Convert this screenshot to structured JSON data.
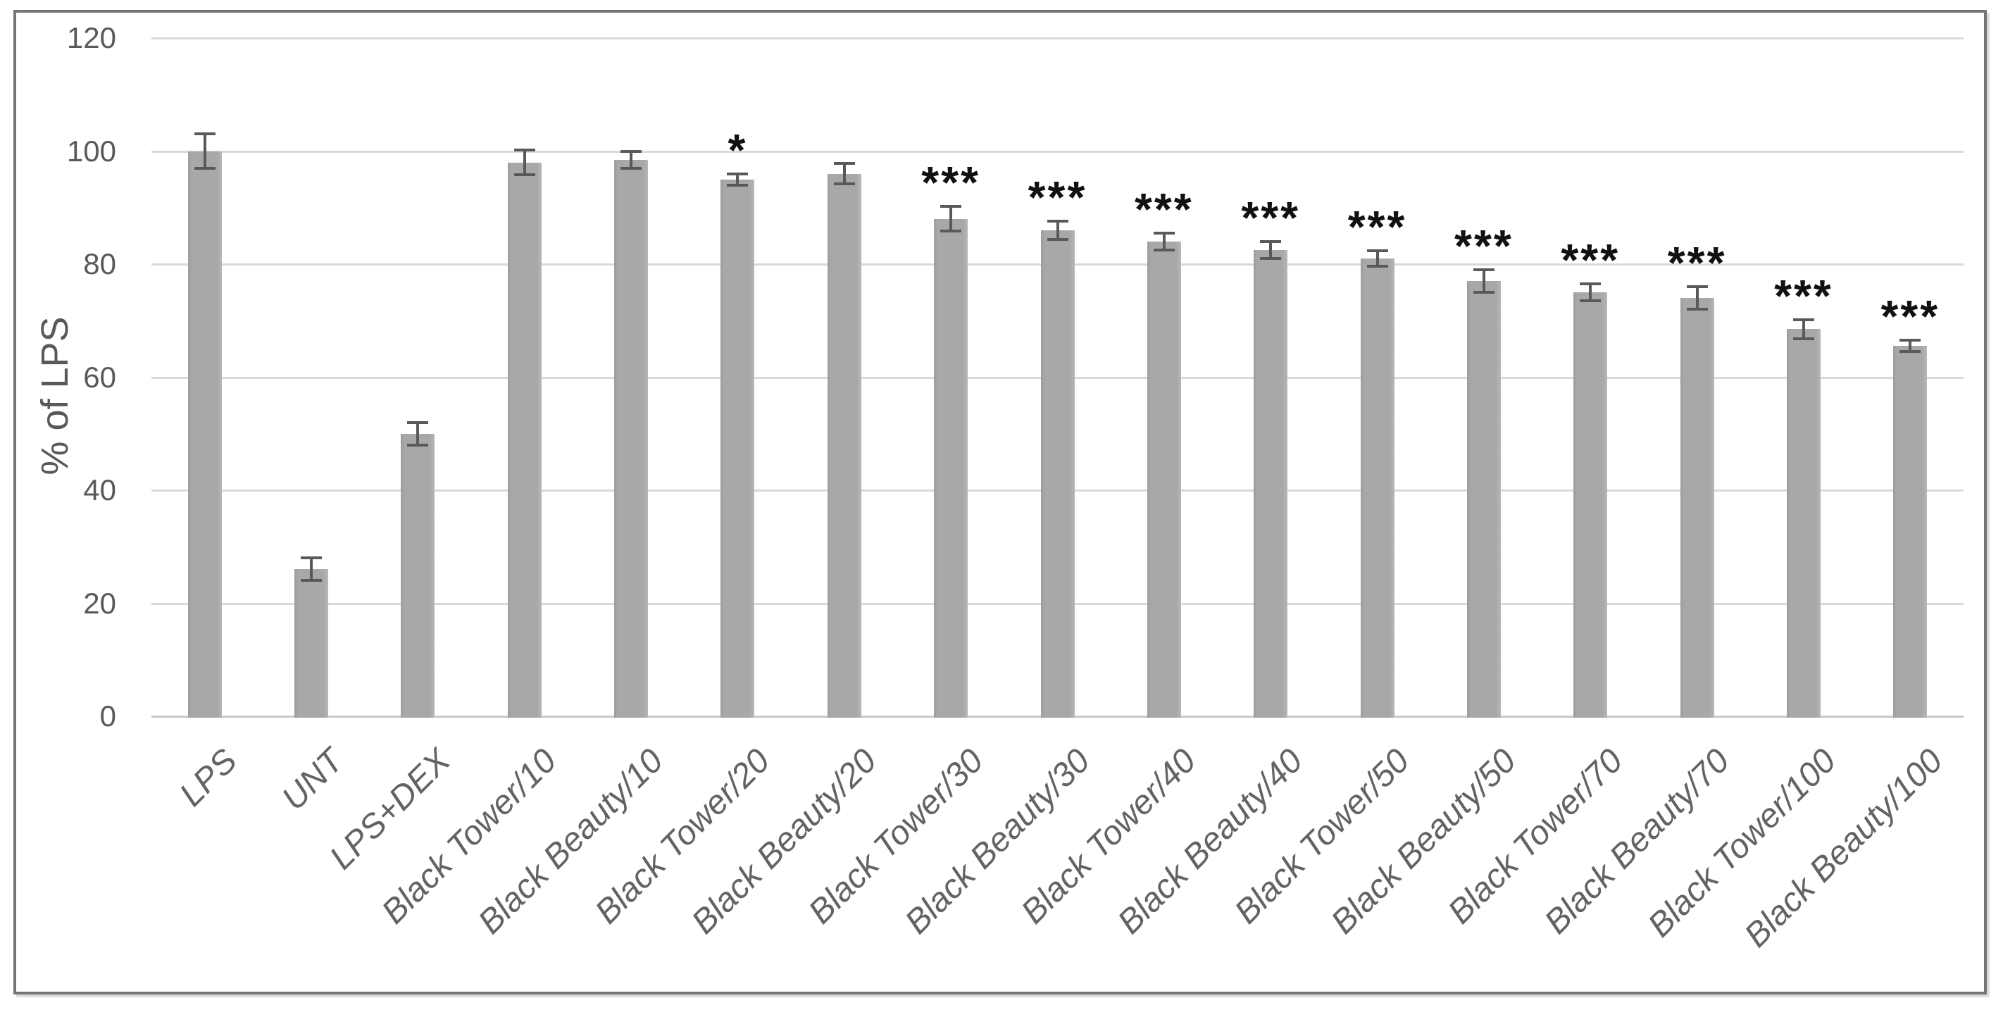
{
  "chart_data": {
    "type": "bar",
    "title": "",
    "xlabel": "",
    "ylabel": "% of LPS",
    "ylim": [
      0,
      120
    ],
    "yticks": [
      0,
      20,
      40,
      60,
      80,
      100,
      120
    ],
    "grid": true,
    "legend": "none",
    "xtick_rotation_deg": 45,
    "xtick_style": "italic",
    "bar_color": "#a8a8a8",
    "error_bar_color": "#595959",
    "gridline_color": "#d9d9d9",
    "significance_color": "#111111",
    "categories": [
      "LPS",
      "UNT",
      "LPS+DEX",
      "Black Tower/10",
      "Black Beauty/10",
      "Black Tower/20",
      "Black Beauty/20",
      "Black Tower/30",
      "Black Beauty/30",
      "Black Tower/40",
      "Black Beauty/40",
      "Black Tower/50",
      "Black Beauty/50",
      "Black Tower/70",
      "Black Beauty/70",
      "Black Tower/100",
      "Black Beauty/100"
    ],
    "values": [
      100,
      26,
      50,
      98,
      98.5,
      95,
      96,
      88,
      86,
      84,
      82.5,
      81,
      77,
      75,
      74,
      68.5,
      65.5
    ],
    "errors": [
      3,
      2,
      2,
      2.2,
      1.5,
      1,
      1.8,
      2.2,
      1.6,
      1.5,
      1.5,
      1.4,
      2,
      1.5,
      2,
      1.7,
      1
    ],
    "significance": [
      "",
      "",
      "",
      "",
      "",
      "*",
      "",
      "***",
      "***",
      "***",
      "***",
      "***",
      "***",
      "***",
      "***",
      "***",
      "***"
    ]
  }
}
